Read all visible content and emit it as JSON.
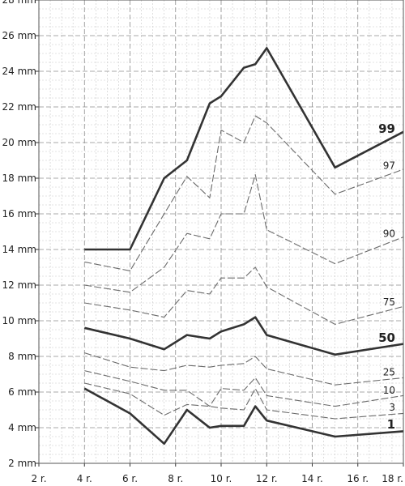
{
  "chart_data": {
    "type": "line",
    "title": "",
    "xlabel": "",
    "ylabel": "",
    "grid": true,
    "xlim": [
      2,
      18
    ],
    "ylim": [
      2,
      28
    ],
    "x_ticks": [
      2,
      4,
      6,
      8,
      10,
      12,
      14,
      16,
      18
    ],
    "x_tick_labels": [
      "2 r.",
      "4 r.",
      "6 r.",
      "8 r.",
      "10 r.",
      "12 r.",
      "14 r.",
      "16 r.",
      "18 r."
    ],
    "y_ticks": [
      2,
      4,
      6,
      8,
      10,
      12,
      14,
      16,
      18,
      20,
      22,
      24,
      26,
      28
    ],
    "y_tick_labels": [
      "2 mm",
      "4 mm",
      "6 mm",
      "8 mm",
      "10 mm",
      "12 mm",
      "14 mm",
      "16 mm",
      "18 mm",
      "20 mm",
      "22 mm",
      "24 mm",
      "26 mm",
      "28 mm"
    ],
    "x": [
      4,
      5,
      6,
      7,
      7.5,
      8,
      8.5,
      9,
      9.5,
      10,
      11,
      11.5,
      12,
      13,
      13.5,
      15,
      18
    ],
    "series": [
      {
        "name": "99",
        "major": true,
        "values": [
          14,
          null,
          14,
          null,
          18,
          null,
          19,
          null,
          22.2,
          22.6,
          24.2,
          24.4,
          25.3,
          null,
          null,
          18.6,
          20.6
        ]
      },
      {
        "name": "97",
        "major": false,
        "values": [
          13.3,
          null,
          12.8,
          null,
          16,
          null,
          18.1,
          null,
          16.9,
          20.7,
          20,
          21.5,
          21.1,
          null,
          null,
          17.1,
          18.5
        ]
      },
      {
        "name": "90",
        "major": false,
        "values": [
          12,
          null,
          11.6,
          null,
          13,
          null,
          14.9,
          null,
          14.6,
          16,
          16,
          18.2,
          15.1,
          null,
          null,
          13.2,
          14.7
        ]
      },
      {
        "name": "75",
        "major": false,
        "values": [
          11,
          null,
          10.6,
          null,
          10.2,
          null,
          11.7,
          null,
          11.5,
          12.4,
          12.4,
          13,
          11.9,
          null,
          null,
          9.8,
          10.8
        ]
      },
      {
        "name": "50",
        "major": true,
        "values": [
          9.6,
          null,
          9,
          null,
          8.4,
          null,
          9.2,
          null,
          9,
          9.4,
          9.8,
          10.2,
          9.2,
          null,
          null,
          8.1,
          8.7
        ]
      },
      {
        "name": "25",
        "major": false,
        "values": [
          8.2,
          null,
          7.4,
          null,
          7.2,
          null,
          7.5,
          null,
          7.4,
          7.5,
          7.6,
          8,
          7.3,
          null,
          null,
          6.4,
          6.8
        ]
      },
      {
        "name": "10",
        "major": false,
        "values": [
          7.2,
          null,
          6.6,
          null,
          6.1,
          null,
          6.1,
          null,
          5.2,
          6.2,
          6.1,
          6.8,
          5.8,
          null,
          null,
          5.2,
          5.8
        ]
      },
      {
        "name": "3",
        "major": false,
        "values": [
          6.5,
          null,
          5.9,
          null,
          4.7,
          null,
          5.3,
          null,
          5.2,
          5.1,
          5,
          6.2,
          5,
          null,
          null,
          4.5,
          4.8
        ]
      },
      {
        "name": "1",
        "major": true,
        "values": [
          6.2,
          null,
          4.8,
          null,
          3.1,
          null,
          5,
          null,
          4,
          4.1,
          4.1,
          5.2,
          4.4,
          null,
          null,
          3.5,
          3.8
        ]
      }
    ]
  }
}
